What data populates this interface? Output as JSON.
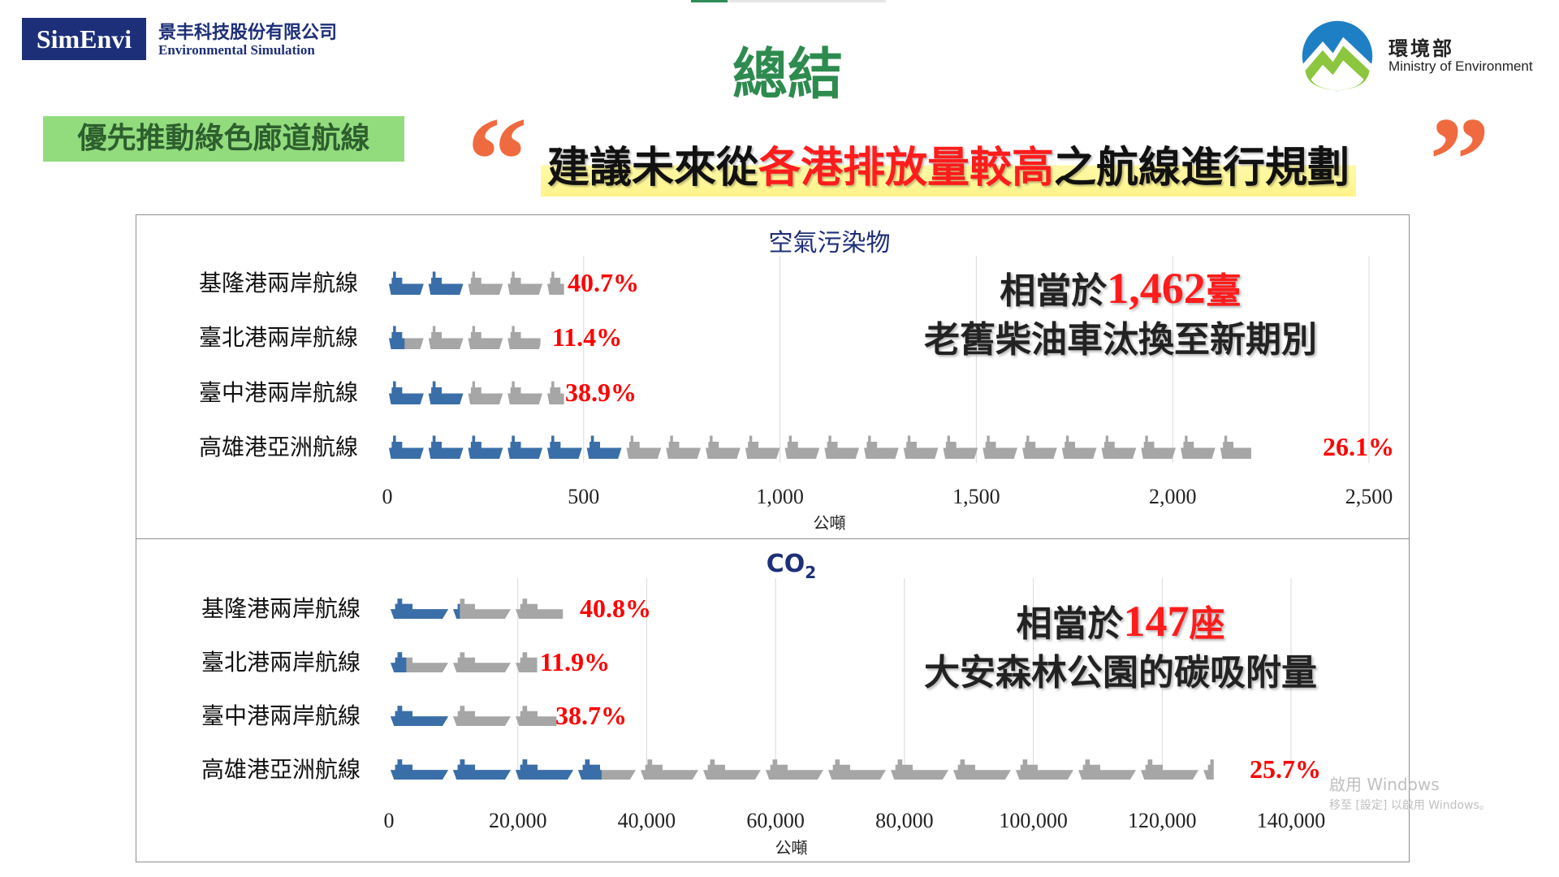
{
  "header": {
    "logo_text": "SimEnvi",
    "company_cn": "景丰科技股份有限公司",
    "company_en": "Environmental Simulation",
    "title": "總結",
    "moe_cn": "環境部",
    "moe_en": "Ministry of Environment"
  },
  "tag_label": "優先推動綠色廊道航線",
  "quote_open": "“",
  "quote_close": "”",
  "headline": {
    "part1": "建議未來從",
    "highlight": "各港排放量較高",
    "part2": "之航線進行規劃"
  },
  "equivalents": [
    {
      "prefix": "相當於",
      "number": "1,462",
      "unit": "臺",
      "line2": "老舊柴油車汰換至新期別"
    },
    {
      "prefix": "相當於",
      "number": "147",
      "unit": "座",
      "line2": "大安森林公園的碳吸附量"
    }
  ],
  "watermark": {
    "line1": "啟用 Windows",
    "line2": "移至 [設定] 以啟用 Windows。"
  },
  "colors": {
    "highlight_bar": "#3a6ea8",
    "base_bar": "#a6a6a6",
    "pct_text": "#ff0000",
    "title_green": "#2e8b4f",
    "quote": "#f06a40"
  },
  "chart_data": [
    {
      "type": "bar",
      "orientation": "horizontal",
      "title": "空氣污染物",
      "xlabel": "公噸",
      "xlim": [
        0,
        2500
      ],
      "ticks": [
        "0",
        "500",
        "1,000",
        "1,500",
        "2,000",
        "2,500"
      ],
      "tick_values": [
        0,
        500,
        1000,
        1500,
        2000,
        2500
      ],
      "categories": [
        "基隆港兩岸航線",
        "臺北港兩岸航線",
        "臺中港兩岸航線",
        "高雄港亞洲航線"
      ],
      "totals": [
        450,
        390,
        450,
        2200
      ],
      "route_values": [
        183,
        44,
        175,
        574
      ],
      "percent_labels": [
        "40.7%",
        "11.4%",
        "38.9%",
        "26.1%"
      ],
      "grid": true
    },
    {
      "type": "bar",
      "orientation": "horizontal",
      "title_main": "CO",
      "title_sub": "2",
      "xlabel": "公噸",
      "xlim": [
        0,
        140000
      ],
      "ticks": [
        "0",
        "20,000",
        "40,000",
        "60,000",
        "80,000",
        "100,000",
        "120,000",
        "140,000"
      ],
      "tick_values": [
        0,
        20000,
        40000,
        60000,
        80000,
        100000,
        120000,
        140000
      ],
      "categories": [
        "基隆港兩岸航線",
        "臺北港兩岸航線",
        "臺中港兩岸航線",
        "高雄港亞洲航線"
      ],
      "totals": [
        27000,
        23000,
        26000,
        128000
      ],
      "route_values": [
        11000,
        2700,
        10000,
        33000
      ],
      "percent_labels": [
        "40.8%",
        "11.9%",
        "38.7%",
        "25.7%"
      ],
      "grid": true
    }
  ]
}
